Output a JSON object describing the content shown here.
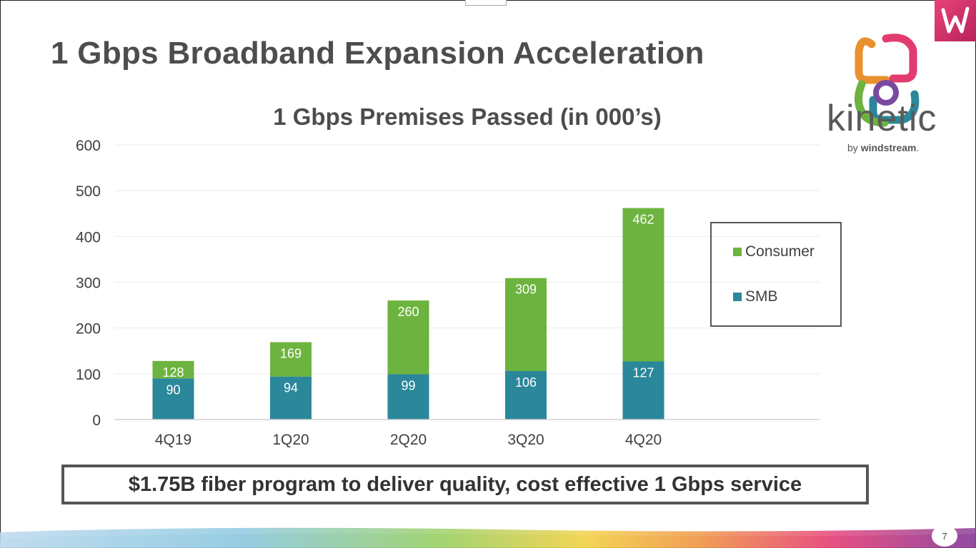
{
  "slide": {
    "title": "1 Gbps Broadband Expansion Acceleration",
    "callout": "$1.75B fiber program to deliver quality, cost effective 1 Gbps service",
    "page_number": "7"
  },
  "brand": {
    "name": "kinetic",
    "tagline_prefix": "by ",
    "tagline_brand": "windstream",
    "tagline_suffix": "."
  },
  "colors": {
    "consumer": "#6db33f",
    "smb": "#2b879a",
    "title_text": "#4d4d4d"
  },
  "chart_data": {
    "type": "bar",
    "stacked": true,
    "title": "1 Gbps Premises Passed (in 000’s)",
    "categories": [
      "4Q19",
      "1Q20",
      "2Q20",
      "3Q20",
      "4Q20"
    ],
    "series": [
      {
        "name": "SMB",
        "values": [
          90,
          94,
          99,
          106,
          127
        ],
        "color": "#2b879a"
      },
      {
        "name": "Consumer",
        "values": [
          38,
          75,
          161,
          203,
          335
        ],
        "color": "#6db33f"
      }
    ],
    "totals": [
      128,
      169,
      260,
      309,
      462
    ],
    "data_labels": {
      "SMB": [
        "90",
        "94",
        "99",
        "106",
        "127"
      ],
      "total": [
        "128",
        "169",
        "260",
        "309",
        "462"
      ]
    },
    "yticks": [
      "0",
      "100",
      "200",
      "300",
      "400",
      "500",
      "600"
    ],
    "ylim": [
      0,
      600
    ],
    "ytick_step": 100,
    "grid": true,
    "legend": {
      "position": "right",
      "order": [
        "Consumer",
        "SMB"
      ]
    }
  }
}
